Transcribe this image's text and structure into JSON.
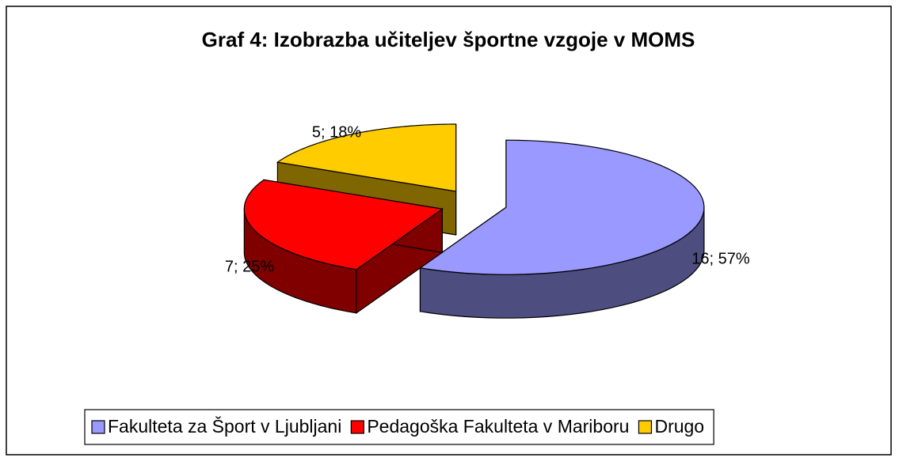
{
  "chart_data": {
    "type": "pie",
    "title": "Graf 4: Izobrazba učiteljev športne vzgoje v MOMS",
    "categories": [
      "Fakulteta za Šport v Ljubljani",
      "Pedagoška Fakulteta v Mariboru",
      "Drugo"
    ],
    "values": [
      16,
      7,
      5
    ],
    "value_labels": [
      "16; 57%",
      "7; 25%",
      "5; 18%"
    ],
    "colors": [
      "#9999ff",
      "#ff0000",
      "#ffcc00"
    ],
    "legend": "bottom"
  }
}
